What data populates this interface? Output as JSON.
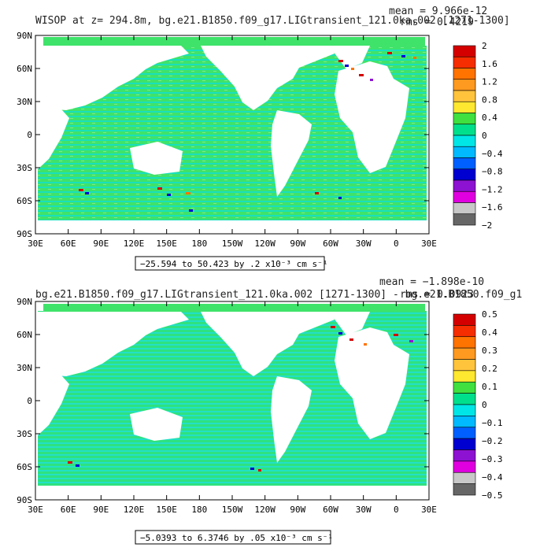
{
  "chart_data": [
    {
      "type": "heatmap",
      "title": "WISOP at z= 294.8m, bg.e21.B1850.f09_g17.LIGtransient_121.0ka.002 [1271-1300]",
      "stats": [
        "mean = 9.966e-12",
        "rms = 0.4219"
      ],
      "x_ticks": [
        "30E",
        "60E",
        "90E",
        "120E",
        "150E",
        "180",
        "150W",
        "120W",
        "90W",
        "60W",
        "30W",
        "0",
        "30E"
      ],
      "y_ticks": [
        "90N",
        "60N",
        "30N",
        "0",
        "30S",
        "60S",
        "90S"
      ],
      "xlim": [
        30,
        390
      ],
      "ylim": [
        -90,
        90
      ],
      "range_label": "−25.594 to 50.423 by .2 x10⁻³ cm s⁻¹",
      "colorbar_labels": [
        "2",
        "1.6",
        "1.2",
        "0.8",
        "0.4",
        "0",
        "−0.4",
        "−0.8",
        "−1.2",
        "−1.6",
        "−2"
      ],
      "colorbar_colors": [
        "#d40000",
        "#f52d00",
        "#ff7300",
        "#ff9a20",
        "#ffc43c",
        "#ffe830",
        "#3fe03f",
        "#00e08c",
        "#00e6e6",
        "#00baff",
        "#0060ff",
        "#0000d0",
        "#8e12d2",
        "#e000e0",
        "#c8c8c8",
        "#666666"
      ]
    },
    {
      "type": "heatmap",
      "title": "bg.e21.B1850.f09_g17.LIGtransient_121.0ka.002 [1271-1300] - bg.e21.B1850.f09_g1",
      "stats": [
        "mean = −1.898e-10",
        "rms = 0.0923"
      ],
      "x_ticks": [
        "30E",
        "60E",
        "90E",
        "120E",
        "150E",
        "180",
        "150W",
        "120W",
        "90W",
        "60W",
        "30W",
        "0",
        "30E"
      ],
      "y_ticks": [
        "90N",
        "60N",
        "30N",
        "0",
        "30S",
        "60S",
        "90S"
      ],
      "xlim": [
        30,
        390
      ],
      "ylim": [
        -90,
        90
      ],
      "range_label": "−5.0393 to 6.3746 by .05 x10⁻³ cm s⁻¹",
      "colorbar_labels": [
        "0.5",
        "0.4",
        "0.3",
        "0.2",
        "0.1",
        "0",
        "−0.1",
        "−0.2",
        "−0.3",
        "−0.4",
        "−0.5"
      ],
      "colorbar_colors": [
        "#d40000",
        "#f52d00",
        "#ff7300",
        "#ff9a20",
        "#ffc43c",
        "#ffe830",
        "#3fe03f",
        "#00e08c",
        "#00e6e6",
        "#00baff",
        "#0060ff",
        "#0000d0",
        "#8e12d2",
        "#e000e0",
        "#c8c8c8",
        "#666666"
      ]
    }
  ]
}
